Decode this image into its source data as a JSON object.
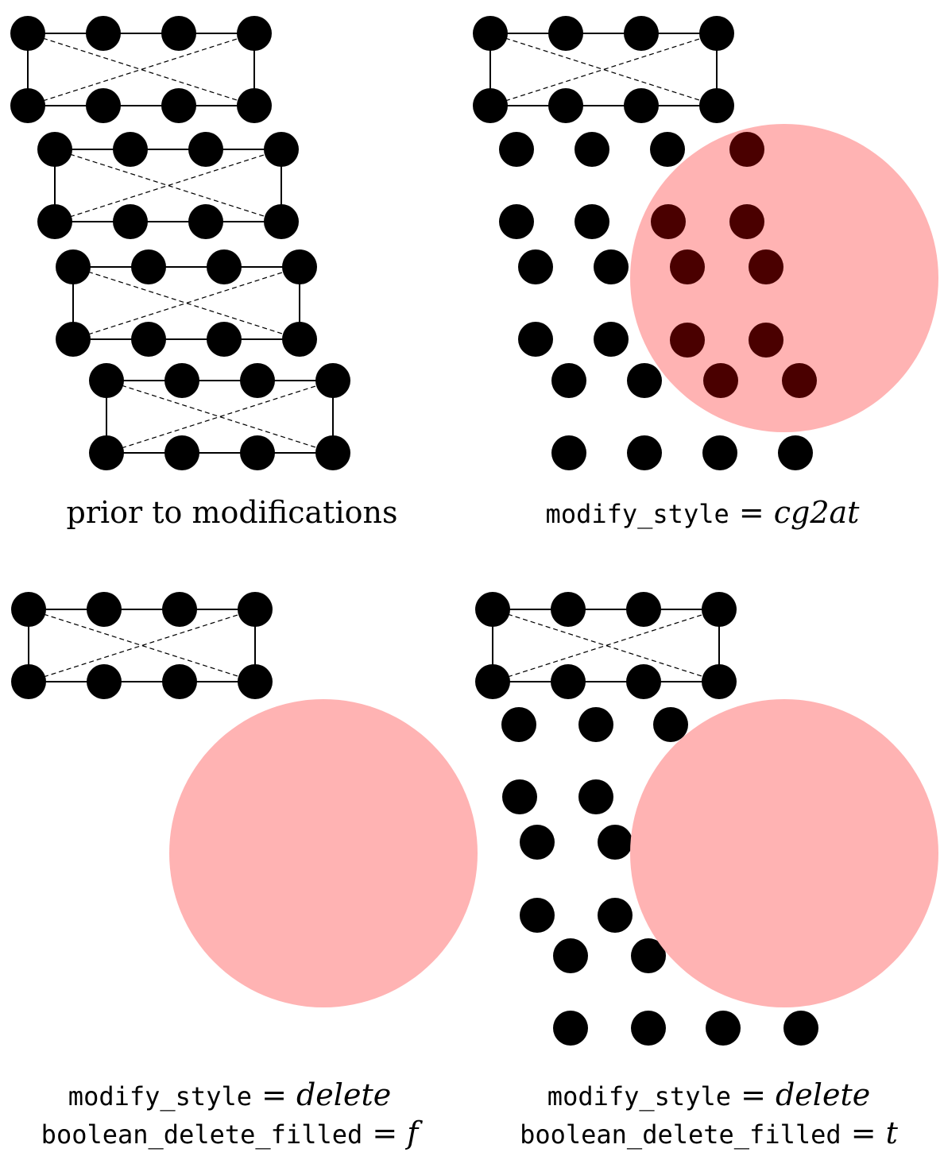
{
  "panels": [
    {
      "id": "prior",
      "caption_lines": [
        {
          "parts": [
            {
              "text": "prior to modifications",
              "style": "roman"
            }
          ]
        }
      ]
    },
    {
      "id": "cg2at",
      "caption_lines": [
        {
          "parts": [
            {
              "text": "modify_style",
              "style": "mono"
            },
            {
              "text": " = ",
              "style": "eq"
            },
            {
              "text": "cg2at",
              "style": "italic"
            }
          ]
        }
      ]
    },
    {
      "id": "delete-f",
      "caption_lines": [
        {
          "parts": [
            {
              "text": "modify_style",
              "style": "mono"
            },
            {
              "text": " = ",
              "style": "eq"
            },
            {
              "text": "delete",
              "style": "italic"
            }
          ]
        },
        {
          "parts": [
            {
              "text": "boolean_delete_filled",
              "style": "mono"
            },
            {
              "text": " = ",
              "style": "eq"
            },
            {
              "text": "f",
              "style": "italic"
            }
          ]
        }
      ]
    },
    {
      "id": "delete-t",
      "caption_lines": [
        {
          "parts": [
            {
              "text": "modify_style",
              "style": "mono"
            },
            {
              "text": " = ",
              "style": "eq"
            },
            {
              "text": "delete",
              "style": "italic"
            }
          ]
        },
        {
          "parts": [
            {
              "text": "boolean_delete_filled",
              "style": "mono"
            },
            {
              "text": " = ",
              "style": "eq"
            },
            {
              "text": "t",
              "style": "italic"
            }
          ]
        }
      ]
    }
  ],
  "colors": {
    "atom": "#000000",
    "atom_inside_region": "#4a0000",
    "region": "#ffb3b3",
    "bond": "#000000"
  }
}
